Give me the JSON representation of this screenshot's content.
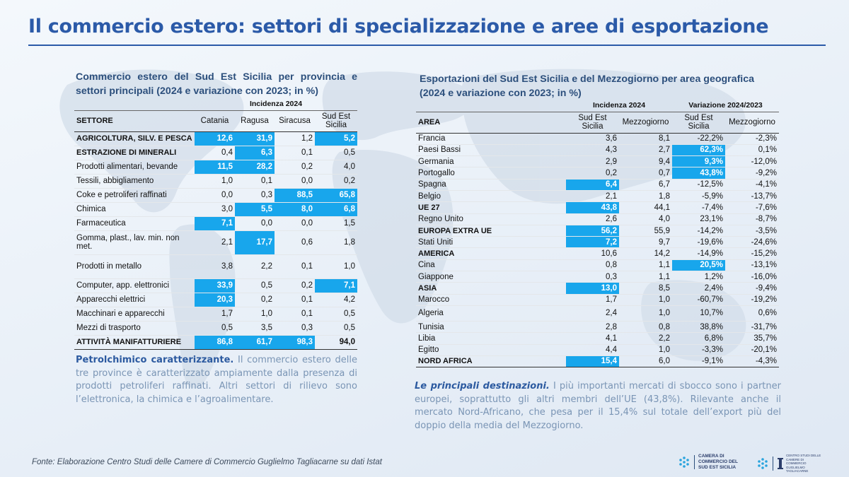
{
  "slide": {
    "title": "Il commercio estero: settori di specializzazione e aree di esportazione",
    "source": "Fonte: Elaborazione Centro Studi delle Camere di Commercio Guglielmo Tagliacarne su dati Istat"
  },
  "theme": {
    "accent": "#2b5aa8",
    "highlight": "#18a6ec",
    "text_muted": "#7a95b5"
  },
  "left_table": {
    "title": "Commercio estero del Sud Est Sicilia per provincia e settori principali (2024 e variazione con 2023; in %)",
    "group_header": "Incidenza 2024",
    "columns": [
      "SETTORE",
      "Catania",
      "Ragusa",
      "Siracusa",
      "Sud Est Sicilia"
    ],
    "rows": [
      {
        "label": "AGRICOLTURA, SILV. E PESCA",
        "values": [
          "12,6",
          "31,9",
          "1,2",
          "5,2"
        ]
      },
      {
        "label": "ESTRAZIONE DI MINERALI",
        "values": [
          "0,4",
          "6,3",
          "0,1",
          "0,5"
        ]
      },
      {
        "label": "Prodotti alimentari, bevande",
        "values": [
          "11,5",
          "28,2",
          "0,2",
          "4,0"
        ]
      },
      {
        "label": "Tessili, abbigliamento",
        "values": [
          "1,0",
          "0,1",
          "0,0",
          "0,2"
        ]
      },
      {
        "label": "Coke e petroliferi raffinati",
        "values": [
          "0,0",
          "0,3",
          "88,5",
          "65,8"
        ]
      },
      {
        "label": "Chimica",
        "values": [
          "3,0",
          "5,5",
          "8,0",
          "6,8"
        ]
      },
      {
        "label": "Farmaceutica",
        "values": [
          "7,1",
          "0,0",
          "0,0",
          "1,5"
        ]
      },
      {
        "label": "Gomma, plast., lav. min. non met.",
        "values": [
          "2,1",
          "17,7",
          "0,6",
          "1,8"
        ]
      },
      {
        "label": "Prodotti in metallo",
        "values": [
          "3,8",
          "2,2",
          "0,1",
          "1,0"
        ]
      },
      {
        "label": "Computer, app. elettronici",
        "values": [
          "33,9",
          "0,5",
          "0,2",
          "7,1"
        ]
      },
      {
        "label": "Apparecchi elettrici",
        "values": [
          "20,3",
          "0,2",
          "0,1",
          "4,2"
        ]
      },
      {
        "label": "Macchinari e apparecchi",
        "values": [
          "1,7",
          "1,0",
          "0,1",
          "0,5"
        ]
      },
      {
        "label": "Mezzi di trasporto",
        "values": [
          "0,5",
          "3,5",
          "0,3",
          "0,5"
        ]
      },
      {
        "label": "ATTIVITÀ MANIFATTURIERE",
        "values": [
          "86,8",
          "61,7",
          "98,3",
          "94,0"
        ]
      }
    ]
  },
  "right_table": {
    "title": "Esportazioni del Sud Est Sicilia e del Mezzogiorno per area geografica (2024 e variazione con 2023; in %)",
    "group_headers": [
      "Incidenza 2024",
      "Variazione 2024/2023"
    ],
    "columns": [
      "AREA",
      "Sud Est Sicilia",
      "Mezzogiorno",
      "Sud Est Sicilia",
      "Mezzogiorno"
    ],
    "rows": [
      {
        "label": "Francia",
        "values": [
          "3,6",
          "8,1",
          "-22,2%",
          "-2,3%"
        ]
      },
      {
        "label": "Paesi Bassi",
        "values": [
          "4,3",
          "2,7",
          "62,3%",
          "0,1%"
        ]
      },
      {
        "label": "Germania",
        "values": [
          "2,9",
          "9,4",
          "9,3%",
          "-12,0%"
        ]
      },
      {
        "label": "Portogallo",
        "values": [
          "0,2",
          "0,7",
          "43,8%",
          "-9,2%"
        ]
      },
      {
        "label": "Spagna",
        "values": [
          "6,4",
          "6,7",
          "-12,5%",
          "-4,1%"
        ]
      },
      {
        "label": "Belgio",
        "values": [
          "2,1",
          "1,8",
          "-5,9%",
          "-13,7%"
        ]
      },
      {
        "label": "UE 27",
        "values": [
          "43,8",
          "44,1",
          "-7,4%",
          "-7,6%"
        ]
      },
      {
        "label": "Regno Unito",
        "values": [
          "2,6",
          "4,0",
          "23,1%",
          "-8,7%"
        ]
      },
      {
        "label": "EUROPA EXTRA UE",
        "values": [
          "56,2",
          "55,9",
          "-14,2%",
          "-3,5%"
        ]
      },
      {
        "label": "Stati Uniti",
        "values": [
          "7,2",
          "9,7",
          "-19,6%",
          "-24,6%"
        ]
      },
      {
        "label": "AMERICA",
        "values": [
          "10,6",
          "14,2",
          "-14,9%",
          "-15,2%"
        ]
      },
      {
        "label": "Cina",
        "values": [
          "0,8",
          "1,1",
          "20,5%",
          "-13,1%"
        ]
      },
      {
        "label": "Giappone",
        "values": [
          "0,3",
          "1,1",
          "1,2%",
          "-16,0%"
        ]
      },
      {
        "label": "ASIA",
        "values": [
          "13,0",
          "8,5",
          "2,4%",
          "-9,4%"
        ]
      },
      {
        "label": "Marocco",
        "values": [
          "1,7",
          "1,0",
          "-60,7%",
          "-19,2%"
        ]
      },
      {
        "label": "Algeria",
        "values": [
          "2,4",
          "1,0",
          "10,7%",
          "0,6%"
        ]
      },
      {
        "label": "Tunisia",
        "values": [
          "2,8",
          "0,8",
          "38,8%",
          "-31,7%"
        ]
      },
      {
        "label": "Libia",
        "values": [
          "4,1",
          "2,2",
          "6,8%",
          "35,7%"
        ]
      },
      {
        "label": "Egitto",
        "values": [
          "4,4",
          "1,0",
          "-3,3%",
          "-20,1%"
        ]
      },
      {
        "label": "NORD AFRICA",
        "values": [
          "15,4",
          "6,0",
          "-9,1%",
          "-4,3%"
        ]
      }
    ]
  },
  "left_text": {
    "lead": "Petrolchimico caratterizzante.",
    "body": " Il commercio estero delle tre province è caratterizzato ampiamente dalla presenza di prodotti petroliferi raffinati. Altri settori di rilievo sono l’elettronica, la chimica e l’agroalimentare."
  },
  "right_text": {
    "lead": "Le principali destinazioni.",
    "body": " I più importanti mercati di sbocco sono i partner europei, soprattutto gli altri membri dell’UE (43,8%). Rilevante anche il mercato Nord-Africano, che pesa per il 15,4% sul totale dell’export più del doppio della media del Mezzogiorno."
  },
  "logos": {
    "camera": "CAMERA DI COMMERCIO DEL SUD EST SICILIA",
    "centro_studi": "CENTRO STUDI DELLE CAMERE DI COMMERCIO GUGLIELMO TAGLIACARNE"
  }
}
